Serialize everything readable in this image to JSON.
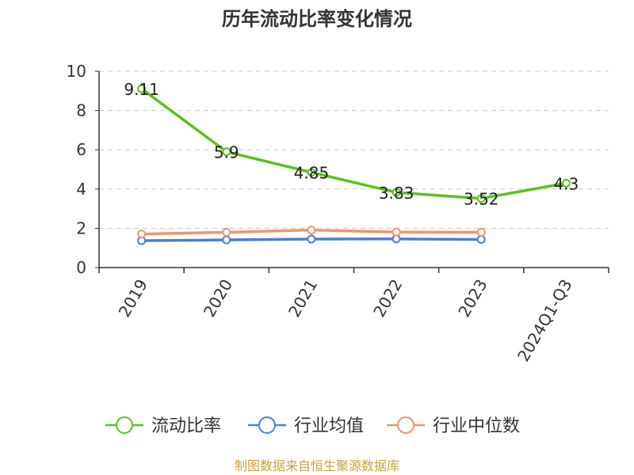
{
  "chart_data": {
    "type": "line",
    "title": "历年流动比率变化情况",
    "categories": [
      "2019",
      "2020",
      "2021",
      "2022",
      "2023",
      "2024Q1-Q3"
    ],
    "ylim": [
      0,
      10
    ],
    "yticks": [
      0,
      2,
      4,
      6,
      8,
      10
    ],
    "grid": true,
    "legend_position": "bottom",
    "series": [
      {
        "name": "流动比率",
        "color": "#5cc21b",
        "values": [
          9.11,
          5.9,
          4.85,
          3.83,
          3.52,
          4.3
        ],
        "labels": [
          "9.11",
          "5.9",
          "4.85",
          "3.83",
          "3.52",
          "4.3"
        ]
      },
      {
        "name": "行业均值",
        "color": "#4a7ee0",
        "values": [
          1.37,
          1.41,
          1.45,
          1.46,
          1.43,
          null
        ]
      },
      {
        "name": "行业中位数",
        "color": "#f5936a",
        "values": [
          1.71,
          1.8,
          1.91,
          1.81,
          1.8,
          null
        ]
      }
    ],
    "source": "制图数据来自恒生聚源数据库"
  }
}
